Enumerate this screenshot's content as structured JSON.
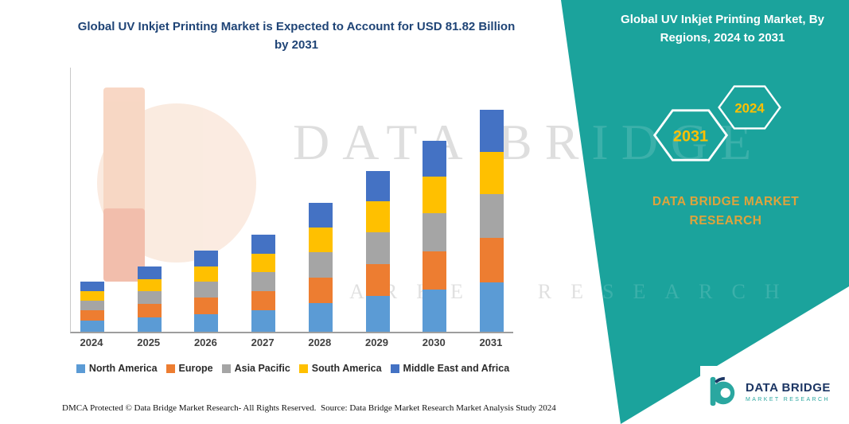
{
  "main": {
    "title": "Global UV Inkjet Printing Market is Expected to Account for USD 81.82 Billion by 2031"
  },
  "right_panel": {
    "title": "Global UV Inkjet Printing Market, By Regions, 2024 to 2031",
    "hexagons": {
      "back": "2031",
      "front": "2024"
    },
    "brand_line": "DATA BRIDGE MARKET RESEARCH",
    "panel_color": "#1BA39C",
    "hexagon_label_color": "#FFC000",
    "brand_text_color": "#DFA33C"
  },
  "watermark": {
    "line1": "DATA BRIDGE",
    "line2": "MARKET RESEARCH"
  },
  "footer": {
    "dmca": "DMCA Protected © Data Bridge Market Research-  All Rights Reserved.",
    "source": "Source: Data Bridge Market Research  Market Analysis Study 2024"
  },
  "logo": {
    "brand": "DATA BRIDGE",
    "tagline": "MARKET RESEARCH"
  },
  "chart_data": {
    "type": "stacked-bar",
    "title": "Global UV Inkjet Printing Market is Expected to Account for USD 81.82 Billion by 2031",
    "unit": "USD Billion (estimated from bar heights; 2031 total labeled 81.82)",
    "categories": [
      "2024",
      "2025",
      "2026",
      "2027",
      "2028",
      "2029",
      "2030",
      "2031"
    ],
    "series": [
      {
        "name": "North America",
        "color": "#5B9BD5",
        "values": [
          4.1,
          5.3,
          6.5,
          7.9,
          10.6,
          13.2,
          15.5,
          18.3
        ]
      },
      {
        "name": "Europe",
        "color": "#ED7D31",
        "values": [
          3.8,
          5.0,
          6.2,
          7.0,
          9.4,
          11.7,
          14.1,
          16.4
        ]
      },
      {
        "name": "Asia Pacific",
        "color": "#A5A5A5",
        "values": [
          3.5,
          4.7,
          5.9,
          7.0,
          9.4,
          11.7,
          14.1,
          16.1
        ]
      },
      {
        "name": "South America",
        "color": "#FFC000",
        "values": [
          3.5,
          4.4,
          5.6,
          6.7,
          9.1,
          11.4,
          13.5,
          15.5
        ]
      },
      {
        "name": "Middle East and Africa",
        "color": "#4472C4",
        "values": [
          3.5,
          4.7,
          5.9,
          7.0,
          9.1,
          11.1,
          13.2,
          15.5
        ]
      }
    ],
    "totals_by_year": [
      18.4,
      24.1,
      30.1,
      35.6,
      47.6,
      59.1,
      70.4,
      81.8
    ],
    "xlabel": "",
    "ylabel": "",
    "ylim": [
      0,
      90
    ],
    "gridlines": false,
    "value_axis_labels_shown": false,
    "legend_position": "bottom"
  }
}
